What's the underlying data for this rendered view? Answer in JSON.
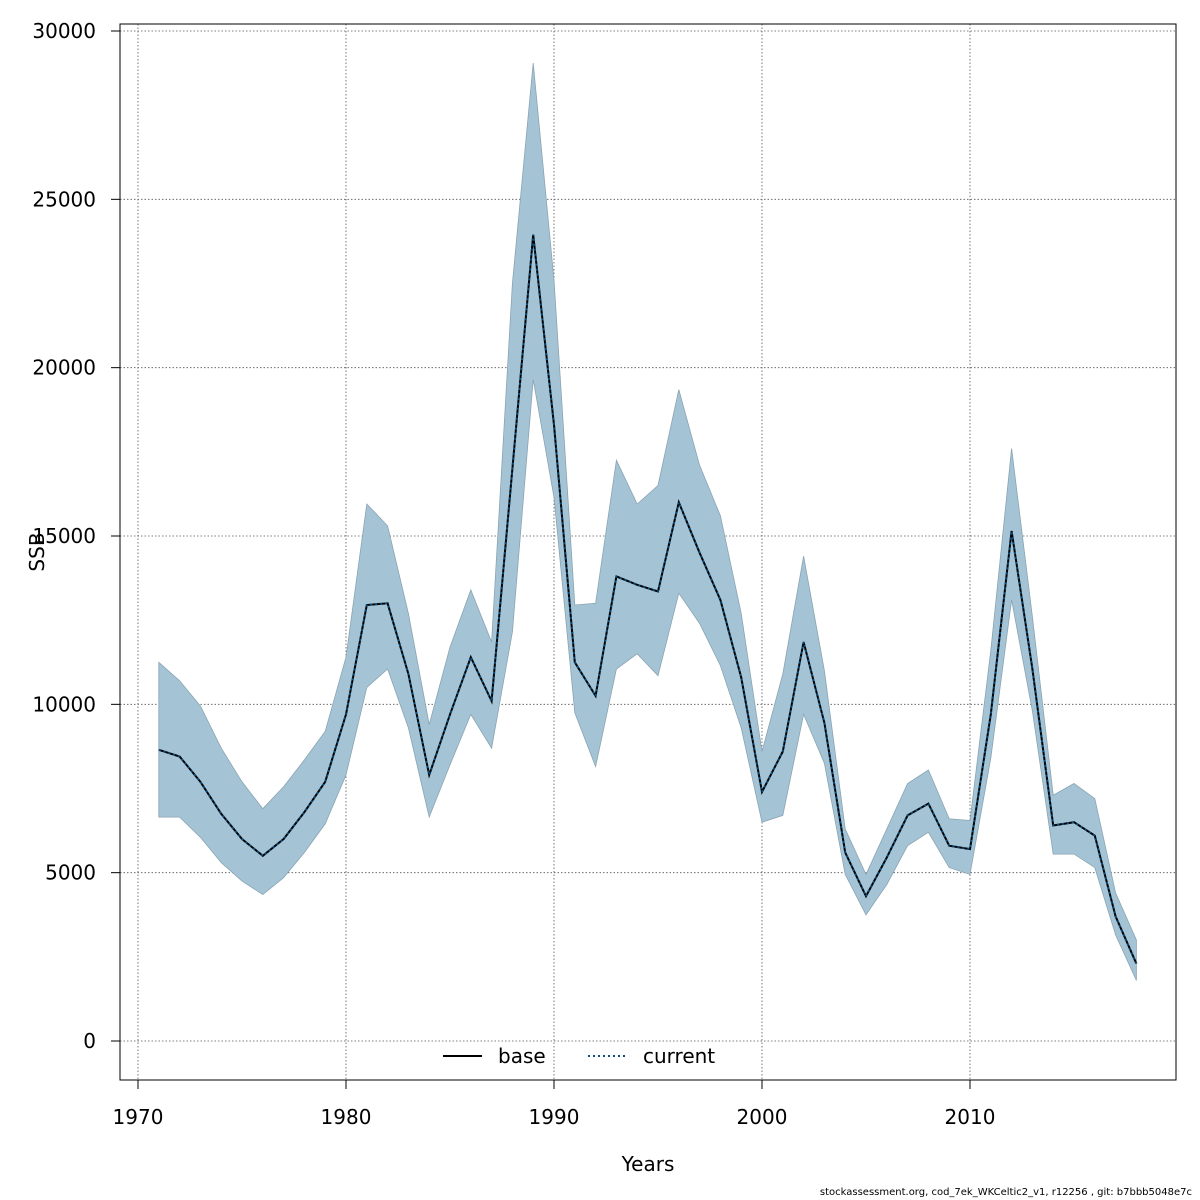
{
  "chart_data": {
    "type": "area",
    "xlabel": "Years",
    "ylabel": "SSB",
    "xlim": [
      1970,
      2019
    ],
    "ylim": [
      0,
      30000
    ],
    "x_ticks": [
      1970,
      1980,
      1990,
      2000,
      2010
    ],
    "y_ticks": [
      0,
      5000,
      10000,
      15000,
      20000,
      25000,
      30000
    ],
    "grid": true,
    "legend_position": "bottom-center",
    "band_color": "#a4c4d6",
    "band_edge_color": "#8aa4b2",
    "years": [
      1971,
      1972,
      1973,
      1974,
      1975,
      1976,
      1977,
      1978,
      1979,
      1980,
      1981,
      1982,
      1983,
      1984,
      1985,
      1986,
      1987,
      1988,
      1989,
      1990,
      1991,
      1992,
      1993,
      1994,
      1995,
      1996,
      1997,
      1998,
      1999,
      2000,
      2001,
      2002,
      2003,
      2004,
      2005,
      2006,
      2007,
      2008,
      2009,
      2010,
      2011,
      2012,
      2013,
      2014,
      2015,
      2016,
      2017,
      2018
    ],
    "band_upper": [
      11250,
      10700,
      9950,
      8700,
      7700,
      6900,
      7550,
      8350,
      9200,
      11400,
      15950,
      15300,
      12700,
      9400,
      11700,
      13400,
      11850,
      22500,
      29050,
      22600,
      12950,
      13000,
      17250,
      15950,
      16500,
      19350,
      17100,
      15600,
      12700,
      8600,
      10900,
      14400,
      11000,
      6300,
      4950,
      6300,
      7650,
      8050,
      6600,
      6550,
      11600,
      17600,
      12600,
      7300,
      7650,
      7200,
      4400,
      3000
    ],
    "band_lower": [
      6650,
      6650,
      6050,
      5300,
      4750,
      4350,
      4850,
      5600,
      6450,
      7900,
      10500,
      11050,
      9300,
      6650,
      8200,
      9700,
      8700,
      12150,
      19650,
      16150,
      9750,
      8150,
      11050,
      11500,
      10850,
      13300,
      12400,
      11150,
      9300,
      6500,
      6700,
      9700,
      8250,
      4950,
      3750,
      4650,
      5800,
      6200,
      5150,
      4950,
      8400,
      13100,
      9800,
      5550,
      5550,
      5150,
      3150,
      1800
    ],
    "series": [
      {
        "name": "base",
        "color": "#000000",
        "dash": "solid",
        "values": [
          8650,
          8450,
          7700,
          6750,
          6000,
          5500,
          6000,
          6800,
          7700,
          9700,
          12950,
          13000,
          10900,
          7900,
          9700,
          11400,
          10100,
          17000,
          23950,
          18300,
          11250,
          10250,
          13800,
          13550,
          13350,
          16000,
          14500,
          13100,
          10800,
          7400,
          8600,
          11850,
          9450,
          5600,
          4300,
          5450,
          6700,
          7050,
          5800,
          5700,
          9700,
          15150,
          11050,
          6400,
          6500,
          6100,
          3700,
          2300
        ]
      },
      {
        "name": "current",
        "color": "#0d4f80",
        "dash": "dotted",
        "values": [
          8650,
          8450,
          7700,
          6750,
          6000,
          5500,
          6000,
          6800,
          7700,
          9700,
          12950,
          13000,
          10900,
          7900,
          9700,
          11400,
          10100,
          17000,
          23950,
          18300,
          11250,
          10250,
          13800,
          13550,
          13350,
          16000,
          14500,
          13100,
          10800,
          7400,
          8600,
          11850,
          9450,
          5600,
          4300,
          5450,
          6700,
          7050,
          5800,
          5700,
          9700,
          15150,
          11050,
          6400,
          6500,
          6100,
          3700,
          2300
        ]
      }
    ]
  },
  "footer": "stockassessment.org, cod_7ek_WKCeltic2_v1, r12256 , git: b7bbb5048e7c"
}
